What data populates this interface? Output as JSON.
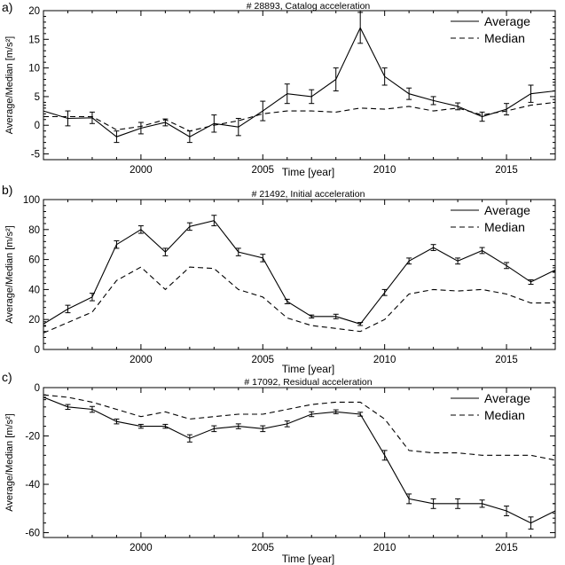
{
  "chart_data": [
    {
      "type": "line",
      "panel_label": "a)",
      "title": "# 28893, Catalog acceleration",
      "xlabel": "Time [year]",
      "ylabel": "Average/Median [m/s²]",
      "xlim": [
        1996,
        2017
      ],
      "ylim": [
        -6,
        20
      ],
      "xticks": [
        2000,
        2005,
        2010,
        2015
      ],
      "yticks": [
        -5,
        0,
        5,
        10,
        15,
        20
      ],
      "legend_position": "top-right",
      "series": [
        {
          "name": "Average",
          "style": "solid",
          "x": [
            1996,
            1997,
            1998,
            1999,
            2000,
            2001,
            2002,
            2003,
            2004,
            2005,
            2006,
            2007,
            2008,
            2009,
            2010,
            2011,
            2012,
            2013,
            2014,
            2015,
            2016,
            2017
          ],
          "y": [
            2.5,
            1.2,
            1.3,
            -2.0,
            -0.5,
            0.5,
            -2.0,
            0.3,
            -0.3,
            2.5,
            5.5,
            5.0,
            8.0,
            17.0,
            8.5,
            5.5,
            4.3,
            3.3,
            1.5,
            2.8,
            5.5,
            6.0
          ],
          "err": [
            1.0,
            1.3,
            1.0,
            1.0,
            1.0,
            0.6,
            1.0,
            1.5,
            1.5,
            1.7,
            1.7,
            1.2,
            2.0,
            2.7,
            1.5,
            1.0,
            0.7,
            0.6,
            0.8,
            1.0,
            1.5,
            1.5
          ]
        },
        {
          "name": "Median",
          "style": "dashed",
          "x": [
            1996,
            1997,
            1998,
            1999,
            2000,
            2001,
            2002,
            2003,
            2004,
            2005,
            2006,
            2007,
            2008,
            2009,
            2010,
            2011,
            2012,
            2013,
            2014,
            2015,
            2016,
            2017
          ],
          "y": [
            1.5,
            1.5,
            1.5,
            -0.8,
            -0.2,
            1.0,
            -1.0,
            0.0,
            0.8,
            2.0,
            2.5,
            2.5,
            2.3,
            3.0,
            2.8,
            3.3,
            2.5,
            3.0,
            1.8,
            2.5,
            3.5,
            4.0
          ]
        }
      ]
    },
    {
      "type": "line",
      "panel_label": "b)",
      "title": "# 21492, Initial acceleration",
      "xlabel": "Time [year]",
      "ylabel": "Average/Median [m/s²]",
      "xlim": [
        1996,
        2017
      ],
      "ylim": [
        0,
        100
      ],
      "xticks": [
        2000,
        2005,
        2010,
        2015
      ],
      "yticks": [
        0,
        20,
        40,
        60,
        80,
        100
      ],
      "legend_position": "top-right",
      "series": [
        {
          "name": "Average",
          "style": "solid",
          "x": [
            1996,
            1997,
            1998,
            1999,
            2000,
            2001,
            2002,
            2003,
            2004,
            2005,
            2006,
            2007,
            2008,
            2009,
            2010,
            2011,
            2012,
            2013,
            2014,
            2015,
            2016,
            2017
          ],
          "y": [
            17,
            27,
            35,
            70,
            80,
            65,
            82,
            86,
            65,
            61,
            32,
            22,
            22,
            17,
            38,
            59,
            68,
            59,
            66,
            56,
            45,
            53
          ],
          "err": [
            1.5,
            2.5,
            2.5,
            2.5,
            2.5,
            2.5,
            2.5,
            3.5,
            2.5,
            2.5,
            1.5,
            1.0,
            1.5,
            1.0,
            2.0,
            2.0,
            2.0,
            2.0,
            2.0,
            2.0,
            1.5,
            1.5
          ]
        },
        {
          "name": "Median",
          "style": "dashed",
          "x": [
            1996,
            1997,
            1998,
            1999,
            2000,
            2001,
            2002,
            2003,
            2004,
            2005,
            2006,
            2007,
            2008,
            2009,
            2010,
            2011,
            2012,
            2013,
            2014,
            2015,
            2016,
            2017
          ],
          "y": [
            11,
            18,
            25,
            46,
            55,
            40,
            55,
            54,
            40,
            35,
            21,
            16,
            14,
            12,
            20,
            37,
            40,
            39,
            40,
            37,
            31,
            31
          ]
        }
      ]
    },
    {
      "type": "line",
      "panel_label": "c)",
      "title": "# 17092, Residual acceleration",
      "xlabel": "Time [year]",
      "ylabel": "Average/Median [m/s²]",
      "xlim": [
        1996,
        2017
      ],
      "ylim": [
        -62,
        0
      ],
      "xticks": [
        2000,
        2005,
        2010,
        2015
      ],
      "yticks": [
        -60,
        -40,
        -20,
        0
      ],
      "legend_position": "top-right",
      "series": [
        {
          "name": "Average",
          "style": "solid",
          "x": [
            1996,
            1997,
            1998,
            1999,
            2000,
            2001,
            2002,
            2003,
            2004,
            2005,
            2006,
            2007,
            2008,
            2009,
            2010,
            2011,
            2012,
            2013,
            2014,
            2015,
            2016,
            2017
          ],
          "y": [
            -4,
            -8,
            -9,
            -14,
            -16,
            -16,
            -21,
            -17,
            -16,
            -17,
            -15,
            -11,
            -10,
            -11,
            -28,
            -46,
            -48,
            -48,
            -48,
            -51,
            -56,
            -51
          ],
          "err": [
            1.0,
            1.0,
            1.2,
            1.0,
            0.8,
            0.8,
            1.5,
            1.2,
            1.0,
            1.2,
            1.2,
            1.0,
            0.8,
            0.8,
            2.0,
            2.0,
            2.0,
            2.0,
            1.5,
            2.0,
            2.5,
            3.0
          ]
        },
        {
          "name": "Median",
          "style": "dashed",
          "x": [
            1996,
            1997,
            1998,
            1999,
            2000,
            2001,
            2002,
            2003,
            2004,
            2005,
            2006,
            2007,
            2008,
            2009,
            2010,
            2011,
            2012,
            2013,
            2014,
            2015,
            2016,
            2017
          ],
          "y": [
            -3,
            -4,
            -6,
            -9,
            -12,
            -10,
            -13,
            -12,
            -11,
            -11,
            -9,
            -7,
            -6,
            -6,
            -13,
            -26,
            -27,
            -27,
            -28,
            -28,
            -28,
            -30
          ]
        }
      ]
    }
  ]
}
